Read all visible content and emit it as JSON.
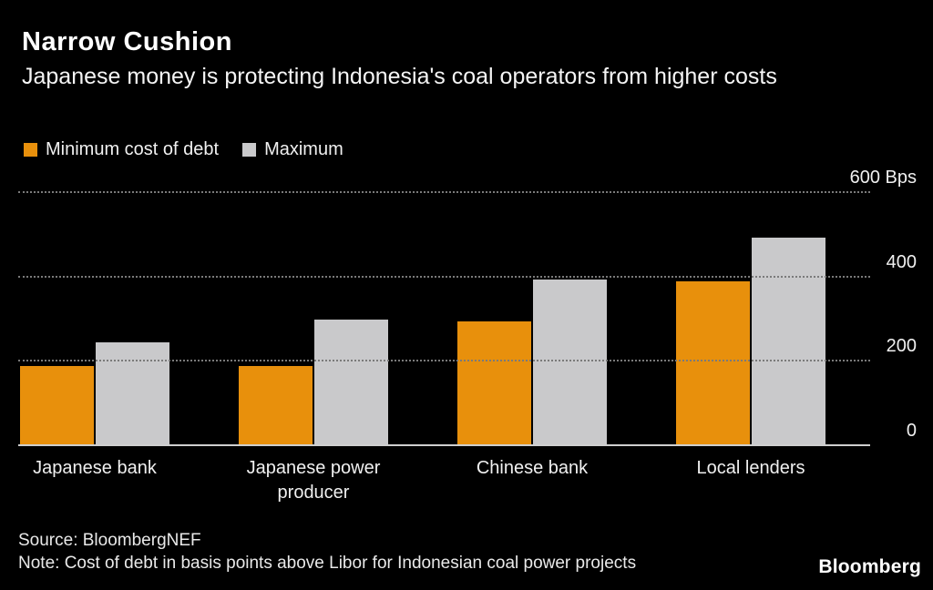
{
  "header": {
    "title": "Narrow Cushion",
    "subtitle": "Japanese money is protecting Indonesia's coal operators from higher costs"
  },
  "legend": [
    {
      "label": "Minimum cost of debt",
      "color": "#E8900C"
    },
    {
      "label": "Maximum",
      "color": "#C9C9CB"
    }
  ],
  "chart_data": {
    "type": "bar",
    "categories": [
      "Japanese bank",
      "Japanese power producer",
      "Chinese bank",
      "Local lenders"
    ],
    "series": [
      {
        "name": "Minimum cost of debt",
        "color": "#E8900C",
        "values": [
          190,
          190,
          295,
          390
        ]
      },
      {
        "name": "Maximum",
        "color": "#C9C9CB",
        "values": [
          245,
          300,
          395,
          495
        ]
      }
    ],
    "unit": "Bps",
    "ylim": [
      0,
      600
    ],
    "yticks": [
      {
        "value": 600,
        "label": "600 Bps"
      },
      {
        "value": 400,
        "label": "400"
      },
      {
        "value": 200,
        "label": "200"
      },
      {
        "value": 0,
        "label": "0"
      }
    ],
    "grid": "dotted-horizontal",
    "legend_position": "top-left"
  },
  "footer": {
    "source": "Source: BloombergNEF",
    "note": "Note: Cost of debt in basis points above Libor for Indonesian coal power projects",
    "brand": "Bloomberg"
  }
}
